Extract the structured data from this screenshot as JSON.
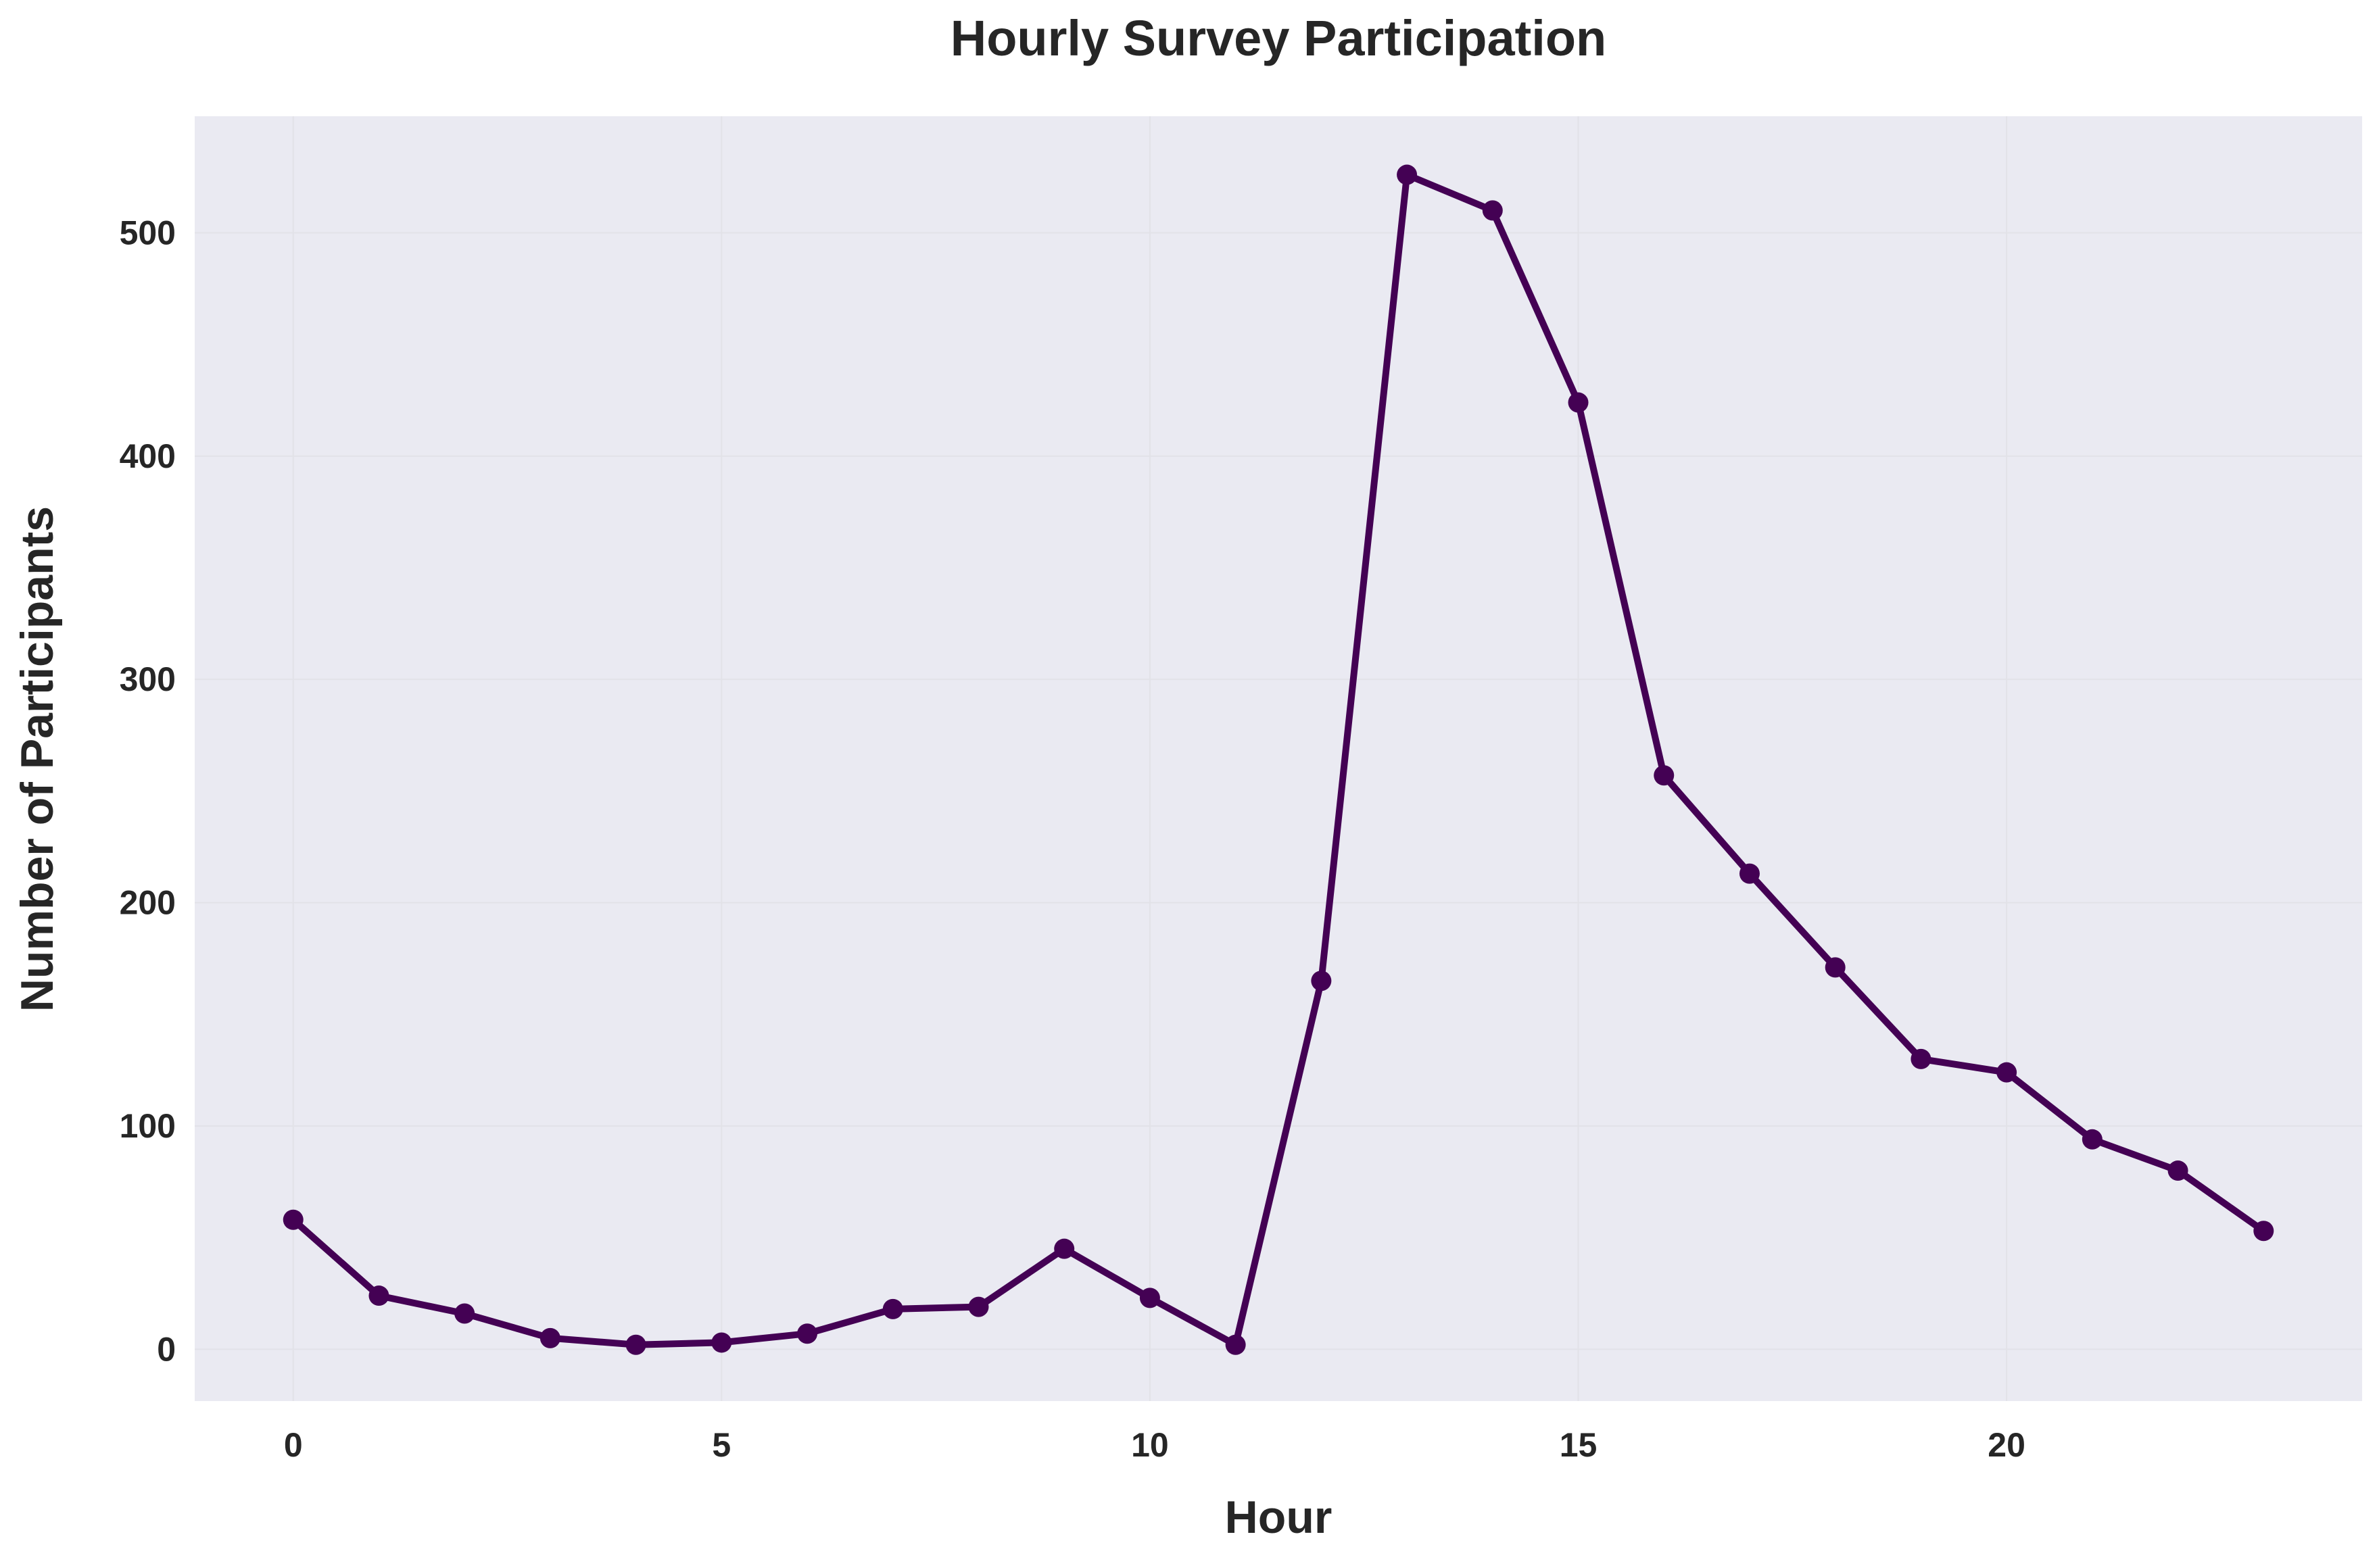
{
  "chart_data": {
    "type": "line",
    "title": "Hourly Survey Participation",
    "xlabel": "Hour",
    "ylabel": "Number of Participants",
    "x": [
      0,
      1,
      2,
      3,
      4,
      5,
      6,
      7,
      8,
      9,
      10,
      11,
      12,
      13,
      14,
      15,
      16,
      17,
      18,
      19,
      20,
      21,
      22,
      23
    ],
    "series": [
      {
        "values": [
          58,
          24,
          16,
          5,
          2,
          3,
          7,
          18,
          19,
          45,
          23,
          2,
          165,
          526,
          510,
          424,
          257,
          213,
          171,
          130,
          124,
          94,
          80,
          53
        ],
        "color": "#440154",
        "marker": "circle"
      }
    ],
    "xticks": [
      0,
      5,
      10,
      15,
      20
    ],
    "yticks": [
      0,
      100,
      200,
      300,
      400,
      500
    ],
    "xlim": [
      -1.15,
      24.15
    ],
    "ylim": [
      -23.2,
      552.2
    ],
    "grid": true,
    "background_color": "#eaeaf2",
    "gridline_color": "#e2e2e8"
  }
}
